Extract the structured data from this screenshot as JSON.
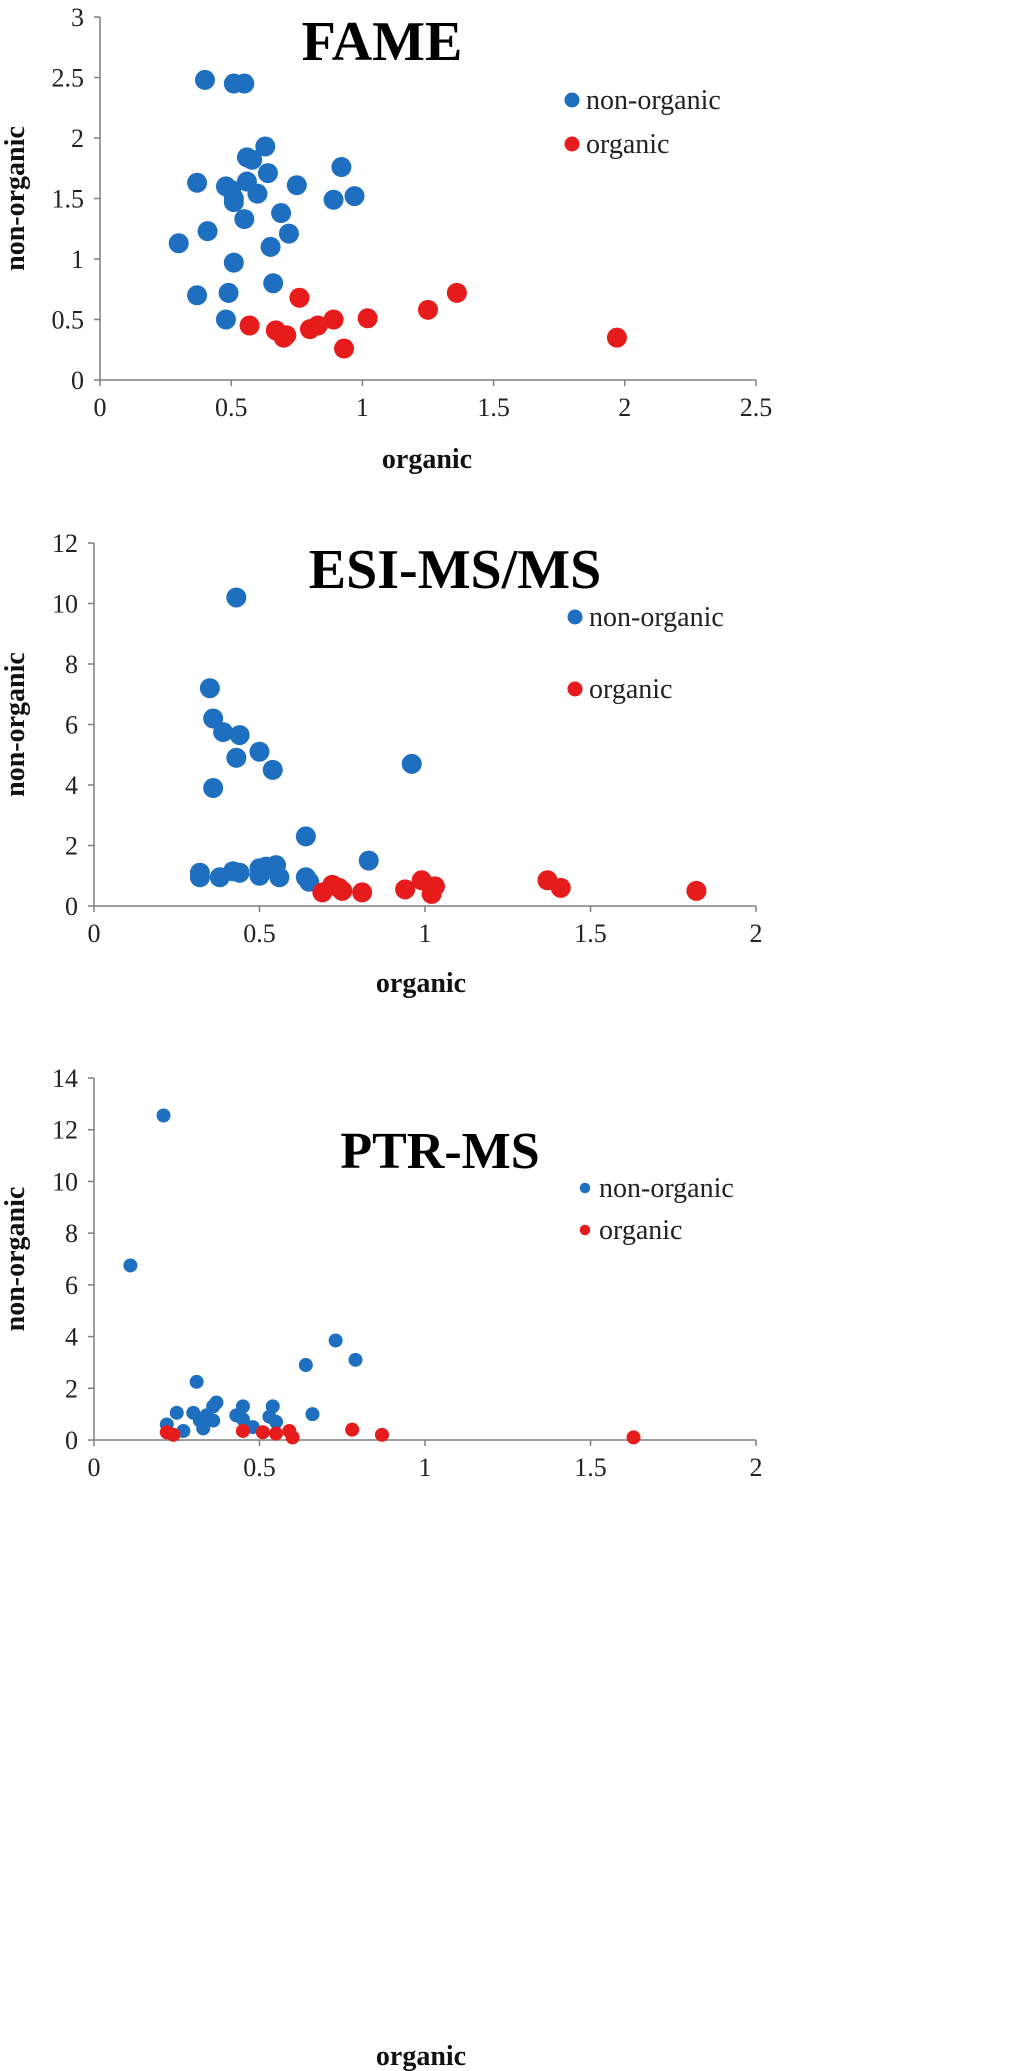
{
  "colors": {
    "non_organic": "#1f6fc0",
    "organic": "#e61b1b"
  },
  "chart_data": [
    {
      "type": "scatter",
      "title": "FAME",
      "xlabel": "organic",
      "ylabel": "non-organic",
      "xlim": [
        0,
        2.5
      ],
      "ylim": [
        0,
        3
      ],
      "xticks": [
        "0",
        "0.5",
        "1",
        "1.5",
        "2",
        "2.5"
      ],
      "yticks": [
        "0",
        "0.5",
        "1",
        "1.5",
        "2",
        "2.5",
        "3"
      ],
      "legend_position": "top-right",
      "series": [
        {
          "name": "non-organic",
          "color": "#1f6fc0",
          "points": [
            [
              0.4,
              2.48
            ],
            [
              0.51,
              2.45
            ],
            [
              0.55,
              2.45
            ],
            [
              0.63,
              1.93
            ],
            [
              0.56,
              1.84
            ],
            [
              0.58,
              1.82
            ],
            [
              0.92,
              1.76
            ],
            [
              0.64,
              1.71
            ],
            [
              0.37,
              1.63
            ],
            [
              0.56,
              1.64
            ],
            [
              0.48,
              1.6
            ],
            [
              0.5,
              1.57
            ],
            [
              0.75,
              1.61
            ],
            [
              0.6,
              1.54
            ],
            [
              0.51,
              1.5
            ],
            [
              0.51,
              1.47
            ],
            [
              0.97,
              1.52
            ],
            [
              0.89,
              1.49
            ],
            [
              0.69,
              1.38
            ],
            [
              0.55,
              1.33
            ],
            [
              0.41,
              1.23
            ],
            [
              0.72,
              1.21
            ],
            [
              0.3,
              1.13
            ],
            [
              0.65,
              1.1
            ],
            [
              0.51,
              0.97
            ],
            [
              0.66,
              0.8
            ],
            [
              0.37,
              0.7
            ],
            [
              0.49,
              0.72
            ],
            [
              0.48,
              0.5
            ]
          ]
        },
        {
          "name": "organic",
          "color": "#e61b1b",
          "points": [
            [
              1.36,
              0.72
            ],
            [
              0.76,
              0.68
            ],
            [
              1.25,
              0.58
            ],
            [
              1.02,
              0.51
            ],
            [
              0.89,
              0.5
            ],
            [
              0.83,
              0.45
            ],
            [
              0.57,
              0.45
            ],
            [
              0.67,
              0.41
            ],
            [
              0.8,
              0.42
            ],
            [
              0.71,
              0.37
            ],
            [
              0.7,
              0.35
            ],
            [
              1.97,
              0.35
            ],
            [
              0.93,
              0.26
            ]
          ]
        }
      ]
    },
    {
      "type": "scatter",
      "title": "ESI-MS/MS",
      "xlabel": "organic",
      "ylabel": "non-organic",
      "xlim": [
        0,
        2
      ],
      "ylim": [
        0,
        12
      ],
      "xticks": [
        "0",
        "0.5",
        "1",
        "1.5",
        "2"
      ],
      "yticks": [
        "0",
        "2",
        "4",
        "6",
        "8",
        "10",
        "12"
      ],
      "legend_position": "top-right",
      "series": [
        {
          "name": "non-organic",
          "color": "#1f6fc0",
          "points": [
            [
              0.43,
              10.2
            ],
            [
              0.35,
              7.2
            ],
            [
              0.36,
              6.2
            ],
            [
              0.39,
              5.75
            ],
            [
              0.44,
              5.65
            ],
            [
              0.5,
              5.1
            ],
            [
              0.43,
              4.9
            ],
            [
              0.96,
              4.7
            ],
            [
              0.54,
              4.5
            ],
            [
              0.36,
              3.9
            ],
            [
              0.64,
              2.3
            ],
            [
              0.83,
              1.5
            ],
            [
              0.32,
              1.1
            ],
            [
              0.42,
              1.15
            ],
            [
              0.5,
              1.25
            ],
            [
              0.52,
              1.3
            ],
            [
              0.55,
              1.35
            ],
            [
              0.44,
              1.1
            ],
            [
              0.32,
              0.95
            ],
            [
              0.38,
              0.95
            ],
            [
              0.5,
              1.0
            ],
            [
              0.56,
              0.95
            ],
            [
              0.64,
              0.95
            ],
            [
              0.65,
              0.8
            ]
          ]
        },
        {
          "name": "organic",
          "color": "#e61b1b",
          "points": [
            [
              0.72,
              0.7
            ],
            [
              0.74,
              0.6
            ],
            [
              0.75,
              0.5
            ],
            [
              0.69,
              0.45
            ],
            [
              0.81,
              0.45
            ],
            [
              0.94,
              0.55
            ],
            [
              0.99,
              0.85
            ],
            [
              1.03,
              0.65
            ],
            [
              1.02,
              0.4
            ],
            [
              1.37,
              0.85
            ],
            [
              1.41,
              0.6
            ],
            [
              1.82,
              0.5
            ]
          ]
        }
      ]
    },
    {
      "type": "scatter",
      "title": "PTR-MS",
      "xlabel": "organic",
      "ylabel": "non-organic",
      "xlim": [
        0,
        2
      ],
      "ylim": [
        0,
        14
      ],
      "xticks": [
        "0",
        "0.5",
        "1",
        "1.5",
        "2"
      ],
      "yticks": [
        "0",
        "2",
        "4",
        "6",
        "8",
        "10",
        "12",
        "14"
      ],
      "legend_position": "top-right",
      "series": [
        {
          "name": "non-organic",
          "color": "#1f6fc0",
          "points": [
            [
              0.21,
              12.55
            ],
            [
              0.11,
              6.75
            ],
            [
              0.73,
              3.85
            ],
            [
              0.79,
              3.1
            ],
            [
              0.64,
              2.9
            ],
            [
              0.31,
              2.25
            ],
            [
              0.45,
              1.3
            ],
            [
              0.54,
              1.3
            ],
            [
              0.37,
              1.45
            ],
            [
              0.36,
              1.3
            ],
            [
              0.25,
              1.05
            ],
            [
              0.3,
              1.05
            ],
            [
              0.34,
              0.95
            ],
            [
              0.43,
              0.95
            ],
            [
              0.53,
              0.9
            ],
            [
              0.66,
              1.0
            ],
            [
              0.22,
              0.6
            ],
            [
              0.32,
              0.75
            ],
            [
              0.36,
              0.75
            ],
            [
              0.45,
              0.8
            ],
            [
              0.55,
              0.7
            ],
            [
              0.27,
              0.35
            ],
            [
              0.33,
              0.45
            ],
            [
              0.48,
              0.5
            ]
          ]
        },
        {
          "name": "organic",
          "color": "#e61b1b",
          "points": [
            [
              0.22,
              0.3
            ],
            [
              0.24,
              0.2
            ],
            [
              0.45,
              0.35
            ],
            [
              0.51,
              0.3
            ],
            [
              0.55,
              0.25
            ],
            [
              0.59,
              0.35
            ],
            [
              0.6,
              0.1
            ],
            [
              0.78,
              0.4
            ],
            [
              0.87,
              0.2
            ],
            [
              1.63,
              0.1
            ]
          ]
        }
      ]
    }
  ]
}
